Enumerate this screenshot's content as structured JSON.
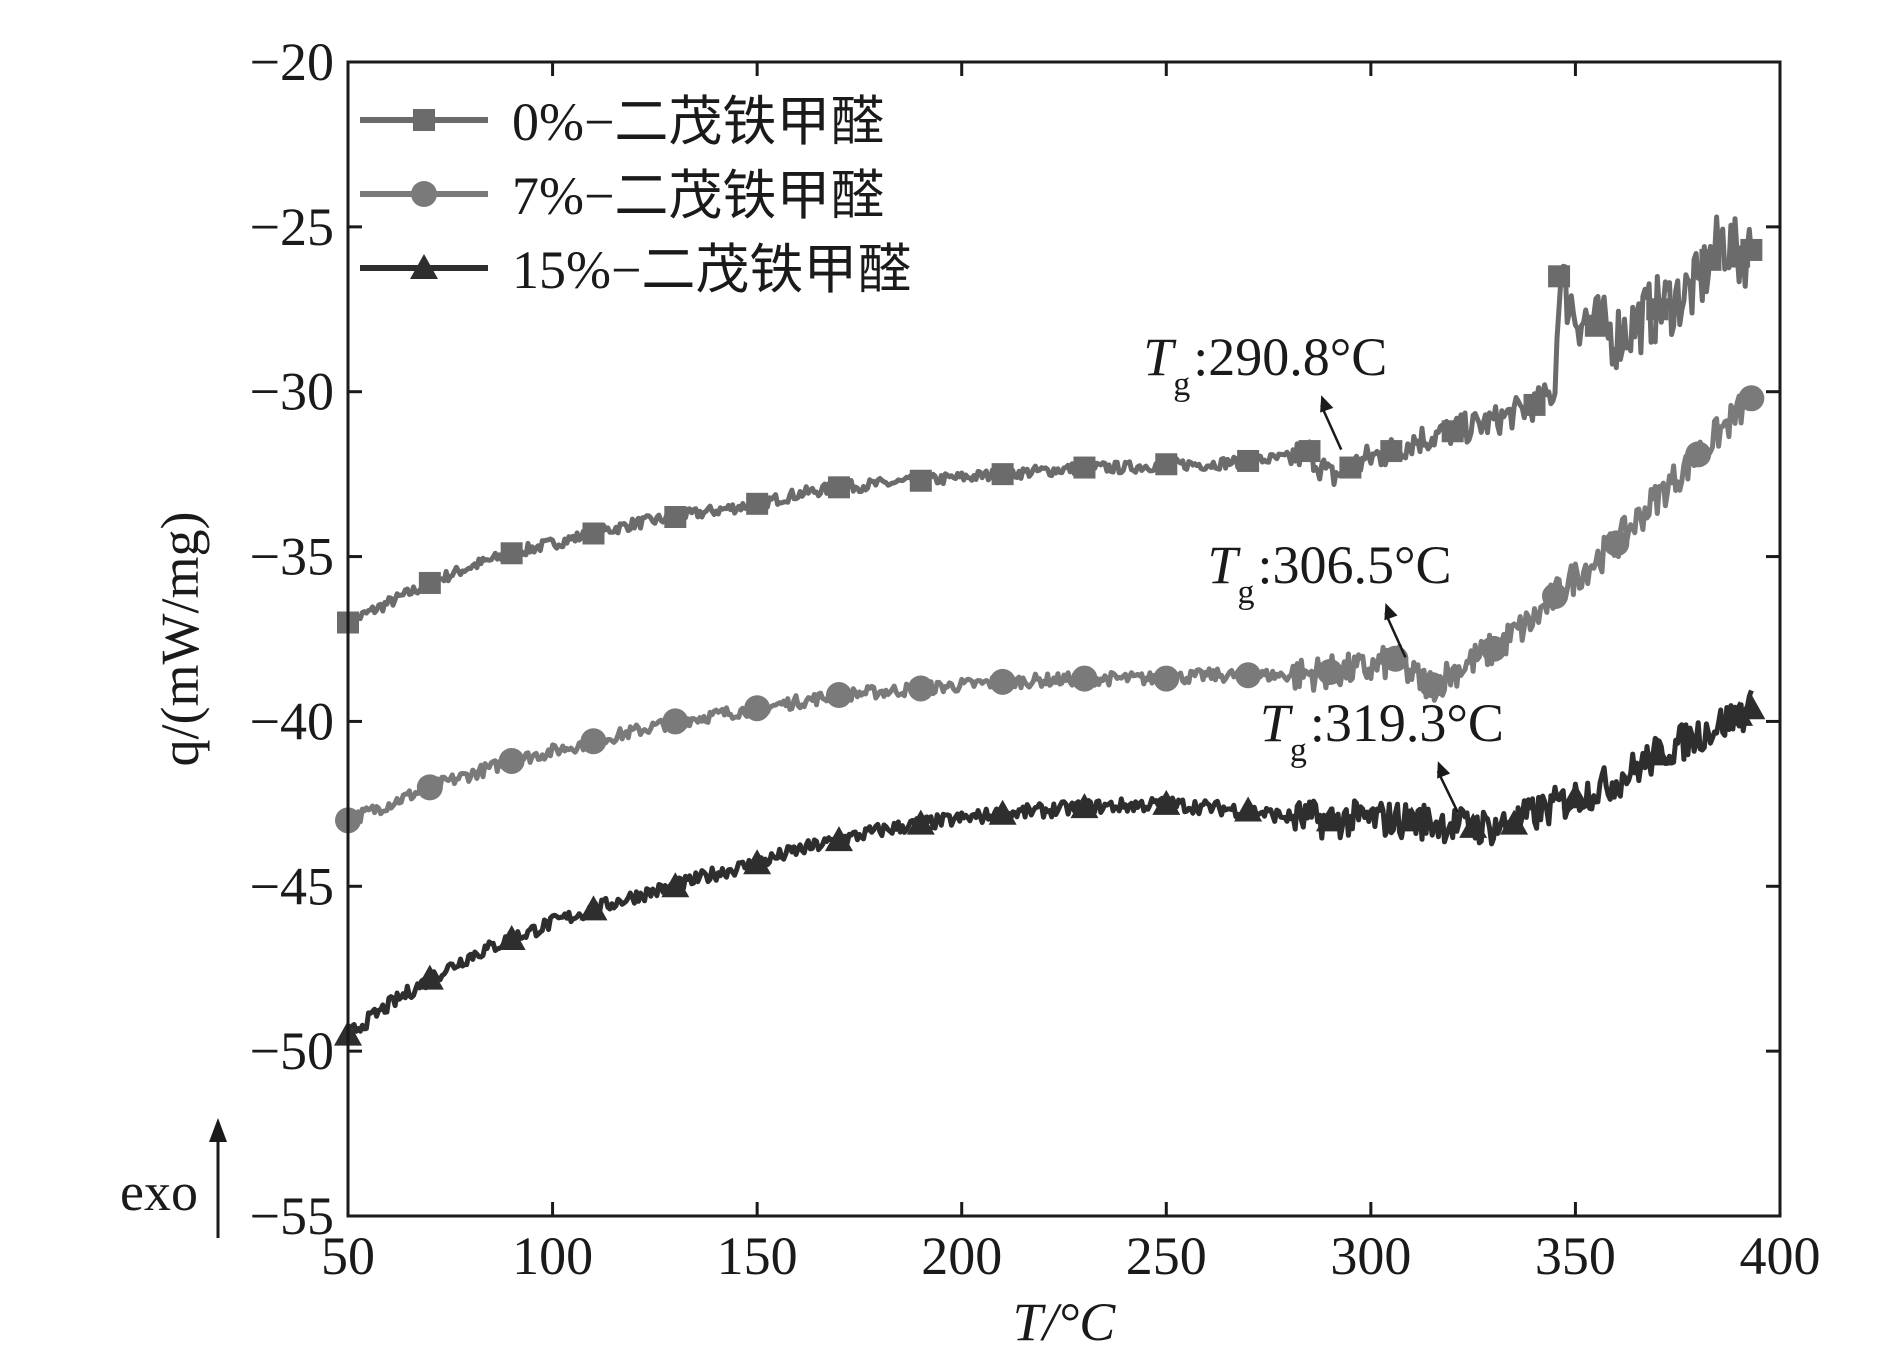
{
  "chart_data": {
    "type": "line",
    "title": "",
    "xlabel": "T/°C",
    "ylabel": "q/(mW/mg)",
    "xlim": [
      50,
      400
    ],
    "ylim": [
      -55,
      -20
    ],
    "x_ticks": [
      50,
      100,
      150,
      200,
      250,
      300,
      350,
      400
    ],
    "y_ticks": [
      -20,
      -25,
      -30,
      -35,
      -40,
      -45,
      -50,
      -55
    ],
    "x_tick_labels": [
      "50",
      "100",
      "150",
      "200",
      "250",
      "300",
      "350",
      "400"
    ],
    "y_tick_labels": [
      "−20",
      "−25",
      "−30",
      "−35",
      "−40",
      "−45",
      "−50",
      "−55"
    ],
    "legend_position": "top-left",
    "exo_label": "exo",
    "series": [
      {
        "name": "0%−二茂铁甲醛",
        "marker": "square",
        "color": "#6b6b6b",
        "x": [
          50,
          60,
          70,
          80,
          90,
          100,
          110,
          120,
          130,
          140,
          150,
          160,
          170,
          180,
          190,
          200,
          210,
          220,
          230,
          240,
          250,
          260,
          270,
          280,
          285,
          290,
          295,
          300,
          305,
          310,
          320,
          330,
          340,
          345,
          346,
          350,
          355,
          360,
          370,
          380,
          383,
          386,
          390,
          393
        ],
        "y": [
          -37.0,
          -36.4,
          -35.8,
          -35.3,
          -34.9,
          -34.6,
          -34.3,
          -34.0,
          -33.8,
          -33.6,
          -33.4,
          -33.1,
          -32.9,
          -32.8,
          -32.7,
          -32.6,
          -32.5,
          -32.4,
          -32.3,
          -32.3,
          -32.2,
          -32.2,
          -32.1,
          -32.0,
          -31.8,
          -32.6,
          -32.3,
          -32.0,
          -31.8,
          -31.5,
          -31.2,
          -30.9,
          -30.4,
          -30.0,
          -26.5,
          -27.6,
          -28.0,
          -28.3,
          -27.5,
          -26.8,
          -26.0,
          -25.4,
          -25.9,
          -25.7
        ]
      },
      {
        "name": "7%−二茂铁甲醛",
        "marker": "circle",
        "color": "#7a7a7a",
        "x": [
          50,
          60,
          70,
          80,
          90,
          100,
          110,
          120,
          130,
          140,
          150,
          160,
          170,
          180,
          190,
          200,
          210,
          220,
          230,
          240,
          250,
          260,
          270,
          280,
          290,
          300,
          306,
          310,
          315,
          320,
          330,
          340,
          345,
          350,
          360,
          370,
          380,
          390,
          393
        ],
        "y": [
          -43.0,
          -42.5,
          -42.0,
          -41.6,
          -41.2,
          -40.9,
          -40.6,
          -40.3,
          -40.0,
          -39.8,
          -39.6,
          -39.4,
          -39.2,
          -39.1,
          -39.0,
          -38.9,
          -38.8,
          -38.75,
          -38.7,
          -38.7,
          -38.7,
          -38.6,
          -38.6,
          -38.6,
          -38.5,
          -38.4,
          -38.1,
          -38.6,
          -38.9,
          -38.5,
          -37.8,
          -36.9,
          -36.2,
          -35.6,
          -34.6,
          -33.2,
          -31.9,
          -30.6,
          -30.2
        ]
      },
      {
        "name": "15%−二茂铁甲醛",
        "marker": "triangle",
        "color": "#2e2e2e",
        "x": [
          50,
          60,
          70,
          80,
          90,
          100,
          110,
          120,
          130,
          140,
          150,
          160,
          170,
          180,
          190,
          200,
          210,
          220,
          230,
          240,
          250,
          260,
          270,
          280,
          290,
          300,
          310,
          319,
          325,
          330,
          335,
          340,
          350,
          360,
          370,
          380,
          390,
          393
        ],
        "y": [
          -49.5,
          -48.6,
          -47.8,
          -47.1,
          -46.6,
          -46.1,
          -45.7,
          -45.3,
          -45.0,
          -44.6,
          -44.3,
          -43.9,
          -43.6,
          -43.3,
          -43.1,
          -42.95,
          -42.8,
          -42.7,
          -42.6,
          -42.55,
          -42.5,
          -42.6,
          -42.7,
          -42.9,
          -43.0,
          -42.95,
          -43.0,
          -43.1,
          -43.2,
          -43.2,
          -43.1,
          -42.8,
          -42.3,
          -41.8,
          -41.0,
          -40.4,
          -39.8,
          -39.6
        ]
      }
    ],
    "annotations": [
      {
        "label_main": "T",
        "label_sub": "g",
        "label_value": ":290.8°C",
        "x": 290.8,
        "y": -32.0,
        "text_x": 290.8,
        "text_y": -29.5
      },
      {
        "label_main": "T",
        "label_sub": "g",
        "label_value": ":306.5°C",
        "x": 306.5,
        "y": -38.3,
        "text_x": 306.5,
        "text_y": -35.8
      },
      {
        "label_main": "T",
        "label_sub": "g",
        "label_value": ":319.3°C",
        "x": 319.3,
        "y": -43.0,
        "text_x": 319.3,
        "text_y": -40.6
      }
    ]
  }
}
